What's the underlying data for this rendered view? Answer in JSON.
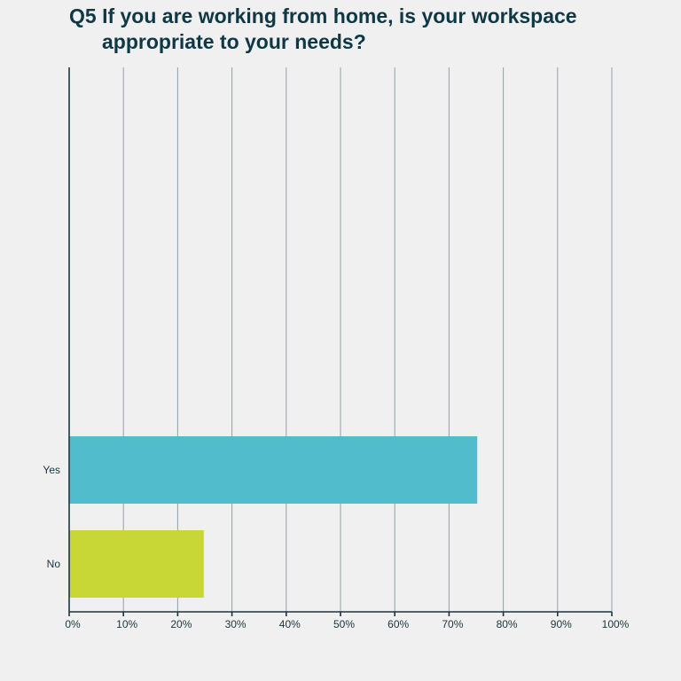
{
  "chart_data": {
    "type": "bar",
    "orientation": "horizontal",
    "title_line1": "Q5 If you are working from home, is your workspace",
    "title_line2": "appropriate to your needs?",
    "categories": [
      "Yes",
      "No"
    ],
    "values": [
      75.2,
      24.8
    ],
    "colors": [
      "#51bccb",
      "#c8d636"
    ],
    "xlim": [
      0,
      100
    ],
    "xticks": [
      "0%",
      "10%",
      "20%",
      "30%",
      "40%",
      "50%",
      "60%",
      "70%",
      "80%",
      "90%",
      "100%"
    ],
    "grid": true
  }
}
